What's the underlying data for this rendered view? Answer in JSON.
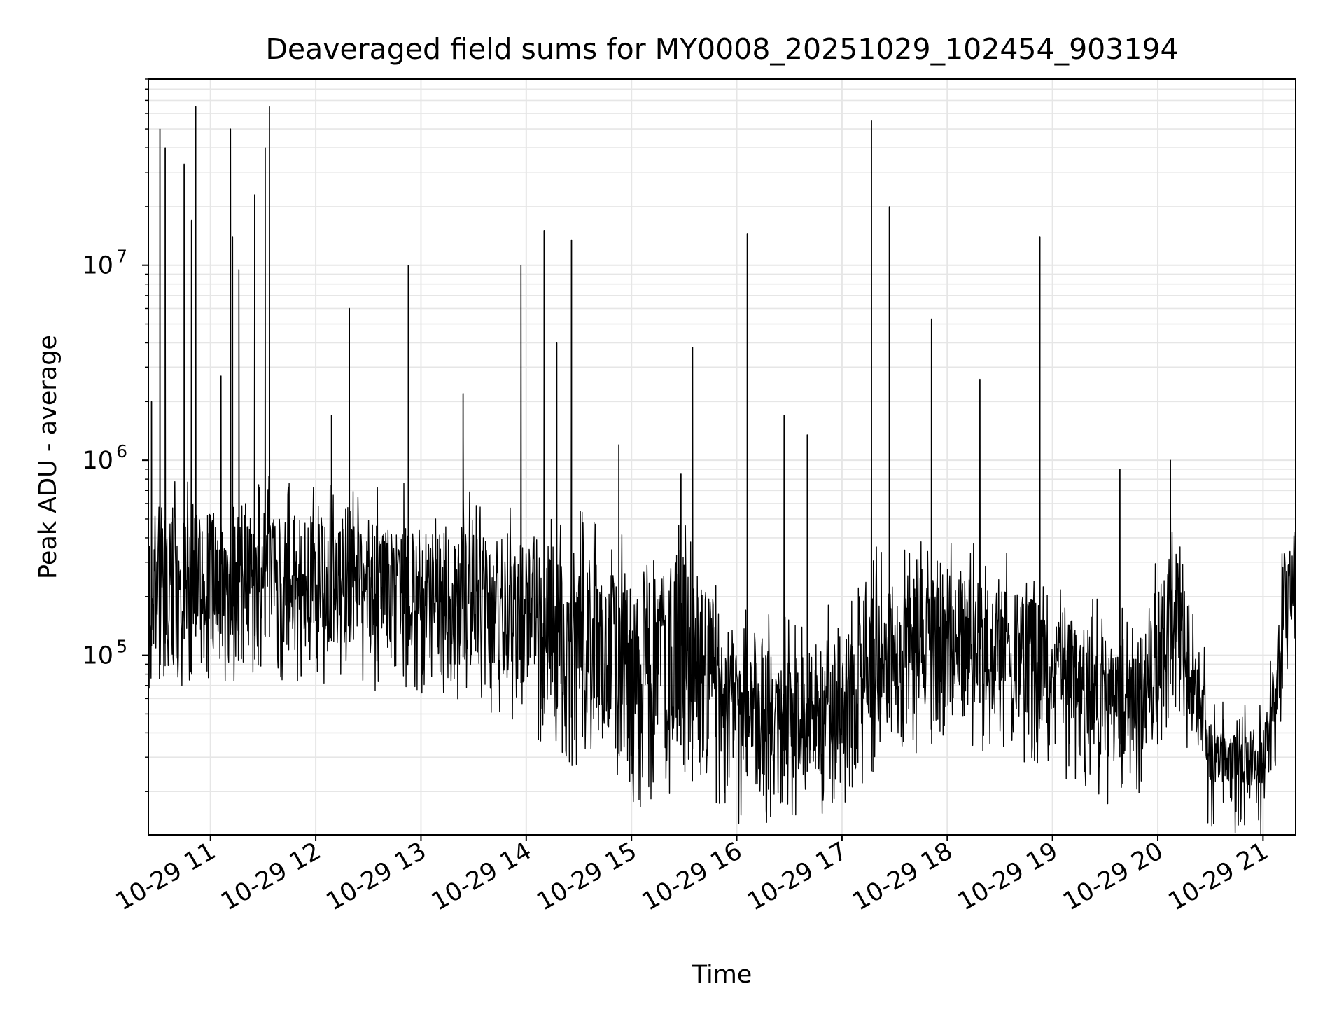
{
  "chart_data": {
    "type": "line",
    "title": "Deaveraged field sums for MY0008_20251029_102454_903194",
    "xlabel": "Time",
    "ylabel": "Peak ADU - average",
    "yscale": "log",
    "ylim": [
      12000,
      90000000
    ],
    "xlim_hours": [
      10.41,
      21.31
    ],
    "x_ticks": [
      {
        "hour": 11,
        "label": "10-29 11"
      },
      {
        "hour": 12,
        "label": "10-29 12"
      },
      {
        "hour": 13,
        "label": "10-29 13"
      },
      {
        "hour": 14,
        "label": "10-29 14"
      },
      {
        "hour": 15,
        "label": "10-29 15"
      },
      {
        "hour": 16,
        "label": "10-29 16"
      },
      {
        "hour": 17,
        "label": "10-29 17"
      },
      {
        "hour": 18,
        "label": "10-29 18"
      },
      {
        "hour": 19,
        "label": "10-29 19"
      },
      {
        "hour": 20,
        "label": "10-29 20"
      },
      {
        "hour": 21,
        "label": "10-29 21"
      }
    ],
    "y_ticks": [
      {
        "value": 100000,
        "base": "10",
        "exp": "5"
      },
      {
        "value": 1000000,
        "base": "10",
        "exp": "6"
      },
      {
        "value": 10000000,
        "base": "10",
        "exp": "7"
      }
    ],
    "grid": true,
    "line_color": "#000000",
    "grid_color": "#e6e6e6",
    "series": [
      {
        "name": "Peak ADU - average",
        "baseline_envelope": [
          {
            "hour": 10.41,
            "low": 110000,
            "high": 500000
          },
          {
            "hour": 11.0,
            "low": 130000,
            "high": 550000
          },
          {
            "hour": 12.0,
            "low": 120000,
            "high": 520000
          },
          {
            "hour": 13.0,
            "low": 110000,
            "high": 480000
          },
          {
            "hour": 13.5,
            "low": 95000,
            "high": 440000
          },
          {
            "hour": 14.0,
            "low": 70000,
            "high": 420000
          },
          {
            "hour": 14.5,
            "low": 45000,
            "high": 350000
          },
          {
            "hour": 15.0,
            "low": 28000,
            "high": 250000
          },
          {
            "hour": 15.5,
            "low": 35000,
            "high": 300000
          },
          {
            "hour": 15.8,
            "low": 28000,
            "high": 180000
          },
          {
            "hour": 16.0,
            "low": 24000,
            "high": 110000
          },
          {
            "hour": 16.5,
            "low": 24000,
            "high": 110000
          },
          {
            "hour": 17.0,
            "low": 28000,
            "high": 120000
          },
          {
            "hour": 17.3,
            "low": 45000,
            "high": 230000
          },
          {
            "hour": 18.0,
            "low": 60000,
            "high": 260000
          },
          {
            "hour": 18.5,
            "low": 55000,
            "high": 220000
          },
          {
            "hour": 19.0,
            "low": 45000,
            "high": 180000
          },
          {
            "hour": 19.5,
            "low": 30000,
            "high": 120000
          },
          {
            "hour": 19.8,
            "low": 30000,
            "high": 110000
          },
          {
            "hour": 20.0,
            "low": 60000,
            "high": 250000
          },
          {
            "hour": 20.2,
            "low": 80000,
            "high": 300000
          },
          {
            "hour": 20.4,
            "low": 30000,
            "high": 110000
          },
          {
            "hour": 20.5,
            "low": 22000,
            "high": 40000
          },
          {
            "hour": 21.0,
            "low": 21000,
            "high": 38000
          },
          {
            "hour": 21.1,
            "low": 35000,
            "high": 90000
          },
          {
            "hour": 21.2,
            "low": 100000,
            "high": 350000
          },
          {
            "hour": 21.31,
            "low": 200000,
            "high": 450000
          }
        ],
        "spikes": [
          {
            "hour": 10.44,
            "value": 2000000
          },
          {
            "hour": 10.52,
            "value": 50000000
          },
          {
            "hour": 10.57,
            "value": 40000000
          },
          {
            "hour": 10.75,
            "value": 33000000
          },
          {
            "hour": 10.82,
            "value": 17000000
          },
          {
            "hour": 10.86,
            "value": 65000000
          },
          {
            "hour": 11.1,
            "value": 2700000
          },
          {
            "hour": 11.19,
            "value": 50000000
          },
          {
            "hour": 11.21,
            "value": 14000000
          },
          {
            "hour": 11.27,
            "value": 9500000
          },
          {
            "hour": 11.42,
            "value": 23000000
          },
          {
            "hour": 11.52,
            "value": 40000000
          },
          {
            "hour": 11.56,
            "value": 65000000
          },
          {
            "hour": 12.15,
            "value": 1700000
          },
          {
            "hour": 12.32,
            "value": 6000000
          },
          {
            "hour": 12.88,
            "value": 10000000
          },
          {
            "hour": 13.4,
            "value": 2200000
          },
          {
            "hour": 13.95,
            "value": 10000000
          },
          {
            "hour": 14.17,
            "value": 15000000
          },
          {
            "hour": 14.29,
            "value": 4000000
          },
          {
            "hour": 14.43,
            "value": 13500000
          },
          {
            "hour": 14.88,
            "value": 1200000
          },
          {
            "hour": 15.47,
            "value": 850000
          },
          {
            "hour": 15.58,
            "value": 3800000
          },
          {
            "hour": 16.1,
            "value": 14500000
          },
          {
            "hour": 16.45,
            "value": 1700000
          },
          {
            "hour": 16.67,
            "value": 1350000
          },
          {
            "hour": 17.28,
            "value": 55000000
          },
          {
            "hour": 17.45,
            "value": 20000000
          },
          {
            "hour": 17.85,
            "value": 5300000
          },
          {
            "hour": 18.31,
            "value": 2600000
          },
          {
            "hour": 18.88,
            "value": 14000000
          },
          {
            "hour": 19.64,
            "value": 900000
          },
          {
            "hour": 20.12,
            "value": 1000000
          }
        ]
      }
    ]
  }
}
